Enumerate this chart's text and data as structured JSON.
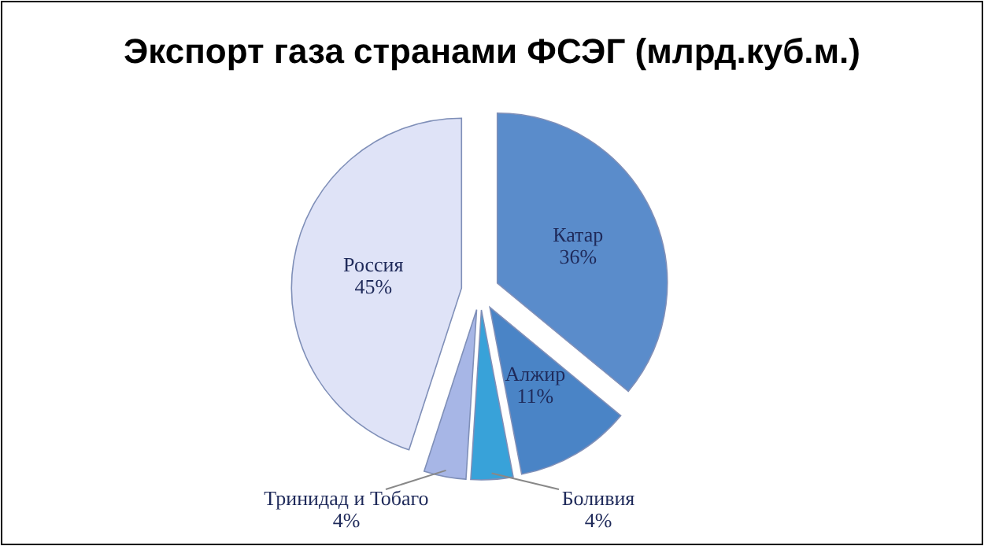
{
  "chart_data": {
    "type": "pie",
    "title": "Экспорт газа странами ФСЭГ (млрд.куб.м.)",
    "categories": [
      "Катар",
      "Алжир",
      "Боливия",
      "Тринидад и Тобаго",
      "Россия"
    ],
    "values": [
      36,
      11,
      4,
      4,
      45
    ],
    "value_labels": [
      "36%",
      "11%",
      "4%",
      "4%",
      "45%"
    ],
    "colors": [
      "#5a8ccb",
      "#4a84c6",
      "#38a2d9",
      "#a7b6e6",
      "#dfe3f7"
    ]
  }
}
